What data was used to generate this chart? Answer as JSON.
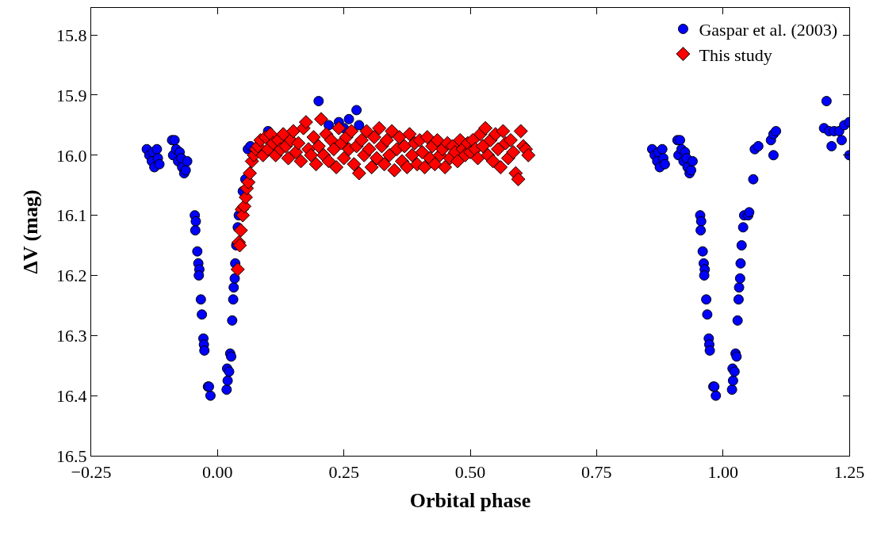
{
  "chart_data": {
    "type": "scatter",
    "xlabel": "Orbital phase",
    "ylabel": "ΔV (mag)",
    "xlim": [
      -0.25,
      1.25
    ],
    "ylim": [
      16.5,
      15.755
    ],
    "xticks": [
      {
        "value": -0.25,
        "label": "−0.25"
      },
      {
        "value": 0,
        "label": "0.00"
      },
      {
        "value": 0.25,
        "label": "0.25"
      },
      {
        "value": 0.5,
        "label": "0.50"
      },
      {
        "value": 0.75,
        "label": "0.75"
      },
      {
        "value": 1,
        "label": "1.00"
      },
      {
        "value": 1.25,
        "label": "1.25"
      }
    ],
    "yticks": [
      15.8,
      15.9,
      {
        "value": 16,
        "label": "16.0"
      },
      16.1,
      16.2,
      16.3,
      16.4,
      16.5
    ],
    "legend": "top right",
    "series": [
      {
        "name": "Gaspar et al. (2003)",
        "color": "#0000ff",
        "marker": "circle",
        "x": [
          -0.14,
          -0.135,
          -0.13,
          -0.128,
          -0.125,
          -0.12,
          -0.118,
          -0.115,
          -0.09,
          -0.085,
          -0.088,
          -0.082,
          -0.078,
          -0.075,
          -0.072,
          -0.07,
          -0.066,
          -0.063,
          -0.06,
          -0.045,
          -0.043,
          -0.044,
          -0.04,
          -0.038,
          -0.036,
          -0.037,
          -0.033,
          -0.031,
          -0.028,
          -0.027,
          -0.026,
          -0.019,
          -0.014,
          -0.017,
          0.018,
          0.02,
          0.019,
          0.023,
          0.025,
          0.027,
          0.029,
          0.031,
          0.032,
          0.034,
          0.035,
          0.037,
          0.04,
          0.042,
          0.05,
          0.055,
          0.06,
          0.065,
          0.1,
          0.2,
          0.22,
          0.24,
          0.25,
          0.26,
          0.275,
          0.28,
          0.86,
          0.865,
          0.87,
          0.872,
          0.875,
          0.88,
          0.882,
          0.885,
          0.91,
          0.915,
          0.912,
          0.918,
          0.922,
          0.925,
          0.928,
          0.93,
          0.934,
          0.937,
          0.94,
          0.955,
          0.957,
          0.956,
          0.96,
          0.962,
          0.964,
          0.963,
          0.967,
          0.969,
          0.972,
          0.973,
          0.974,
          0.981,
          0.986,
          0.983,
          1.018,
          1.02,
          1.019,
          1.023,
          1.025,
          1.027,
          1.029,
          1.031,
          1.032,
          1.034,
          1.035,
          1.037,
          1.04,
          1.042,
          1.05,
          1.052,
          1.06,
          1.063,
          1.07,
          1.095,
          1.1,
          1.105,
          1.1,
          1.2,
          1.205,
          1.21,
          1.215,
          1.22,
          1.23,
          1.235,
          1.24,
          1.25,
          1.25
        ],
        "values": [
          15.99,
          16.0,
          16.01,
          15.995,
          16.02,
          15.99,
          16.005,
          16.015,
          15.975,
          15.975,
          16.0,
          15.99,
          16.01,
          15.995,
          16.005,
          16.02,
          16.03,
          16.025,
          16.01,
          16.1,
          16.11,
          16.125,
          16.16,
          16.18,
          16.19,
          16.2,
          16.24,
          16.265,
          16.305,
          16.315,
          16.325,
          16.385,
          16.4,
          16.385,
          16.39,
          16.375,
          16.355,
          16.36,
          16.33,
          16.335,
          16.275,
          16.24,
          16.22,
          16.205,
          16.18,
          16.15,
          16.12,
          16.1,
          16.06,
          16.04,
          15.99,
          15.985,
          15.96,
          15.91,
          15.95,
          15.945,
          15.955,
          15.94,
          15.925,
          15.95,
          15.99,
          16.0,
          16.01,
          15.995,
          16.02,
          15.99,
          16.005,
          16.015,
          15.975,
          15.975,
          16.0,
          15.99,
          16.01,
          15.995,
          16.005,
          16.02,
          16.03,
          16.025,
          16.01,
          16.1,
          16.11,
          16.125,
          16.16,
          16.18,
          16.19,
          16.2,
          16.24,
          16.265,
          16.305,
          16.315,
          16.325,
          16.385,
          16.4,
          16.385,
          16.39,
          16.375,
          16.355,
          16.36,
          16.33,
          16.335,
          16.275,
          16.24,
          16.22,
          16.205,
          16.18,
          16.15,
          16.12,
          16.1,
          16.1,
          16.095,
          16.04,
          15.99,
          15.985,
          15.975,
          15.965,
          15.96,
          16.0,
          15.955,
          15.91,
          15.96,
          15.985,
          15.96,
          15.96,
          15.975,
          15.95,
          15.945,
          16.0
        ]
      },
      {
        "name": "This study",
        "color": "#ff0000",
        "marker": "diamond",
        "x": [
          0.04,
          0.042,
          0.044,
          0.046,
          0.048,
          0.05,
          0.053,
          0.056,
          0.058,
          0.061,
          0.064,
          0.068,
          0.072,
          0.076,
          0.08,
          0.085,
          0.09,
          0.095,
          0.1,
          0.105,
          0.11,
          0.115,
          0.12,
          0.125,
          0.13,
          0.135,
          0.14,
          0.145,
          0.15,
          0.155,
          0.16,
          0.165,
          0.17,
          0.175,
          0.18,
          0.185,
          0.19,
          0.195,
          0.2,
          0.205,
          0.21,
          0.215,
          0.22,
          0.225,
          0.23,
          0.235,
          0.24,
          0.245,
          0.25,
          0.255,
          0.26,
          0.265,
          0.27,
          0.275,
          0.28,
          0.285,
          0.29,
          0.295,
          0.3,
          0.305,
          0.31,
          0.315,
          0.32,
          0.325,
          0.33,
          0.335,
          0.34,
          0.345,
          0.35,
          0.355,
          0.36,
          0.365,
          0.37,
          0.375,
          0.38,
          0.385,
          0.39,
          0.395,
          0.4,
          0.405,
          0.41,
          0.415,
          0.42,
          0.425,
          0.43,
          0.435,
          0.44,
          0.445,
          0.45,
          0.455,
          0.46,
          0.465,
          0.47,
          0.475,
          0.48,
          0.485,
          0.49,
          0.495,
          0.5,
          0.505,
          0.51,
          0.515,
          0.52,
          0.525,
          0.53,
          0.535,
          0.54,
          0.545,
          0.55,
          0.555,
          0.56,
          0.565,
          0.57,
          0.575,
          0.58,
          0.585,
          0.59,
          0.595,
          0.6,
          0.605,
          0.61,
          0.615
        ],
        "values": [
          16.19,
          16.145,
          16.15,
          16.125,
          16.09,
          16.1,
          16.085,
          16.07,
          16.055,
          16.045,
          16.03,
          16.01,
          16.0,
          15.99,
          15.985,
          15.975,
          16.0,
          15.97,
          15.99,
          15.965,
          15.98,
          16.0,
          15.975,
          15.99,
          15.965,
          15.985,
          16.005,
          15.975,
          15.96,
          15.995,
          15.98,
          16.01,
          15.955,
          15.945,
          15.99,
          16.0,
          15.97,
          16.015,
          15.985,
          15.94,
          16.0,
          15.965,
          16.01,
          15.975,
          15.99,
          16.02,
          15.955,
          15.98,
          16.005,
          15.97,
          15.99,
          15.96,
          16.015,
          15.985,
          16.03,
          15.975,
          16.0,
          15.96,
          15.99,
          16.02,
          15.97,
          16.005,
          15.955,
          15.985,
          16.015,
          15.975,
          16.0,
          15.96,
          16.025,
          15.99,
          15.97,
          16.01,
          15.985,
          16.02,
          15.965,
          16.0,
          15.98,
          16.015,
          15.975,
          15.995,
          16.02,
          15.97,
          16.005,
          15.985,
          16.015,
          15.975,
          16.0,
          15.99,
          16.02,
          15.98,
          16.005,
          15.985,
          15.995,
          16.01,
          15.975,
          15.99,
          16.0,
          15.98,
          15.995,
          15.975,
          15.99,
          16.005,
          15.965,
          15.985,
          15.955,
          16.0,
          15.975,
          16.01,
          15.965,
          15.99,
          16.02,
          15.96,
          15.98,
          16.005,
          15.975,
          15.995,
          16.03,
          16.04,
          15.96,
          15.985,
          15.99,
          16.0
        ]
      }
    ]
  }
}
